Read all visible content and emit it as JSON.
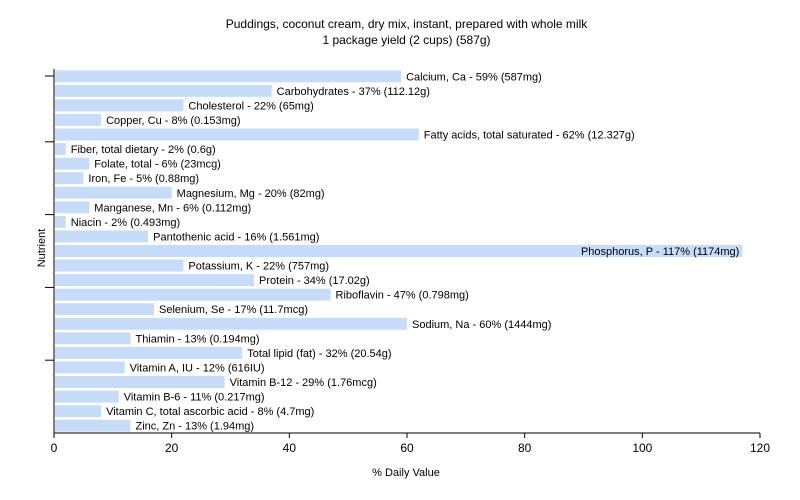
{
  "chart_data": {
    "type": "bar",
    "orientation": "horizontal",
    "title": "Puddings, coconut cream, dry mix, instant, prepared with whole milk",
    "subtitle": "1 package yield (2 cups) (587g)",
    "xlabel": "% Daily Value",
    "ylabel": "Nutrient",
    "xlim": [
      0,
      120
    ],
    "xticks": [
      0,
      20,
      40,
      60,
      80,
      100,
      120
    ],
    "grid": false,
    "bar_color": "#c6dcf8",
    "categories": [
      "Calcium, Ca",
      "Carbohydrates",
      "Cholesterol",
      "Copper, Cu",
      "Fatty acids, total saturated",
      "Fiber, total dietary",
      "Folate, total",
      "Iron, Fe",
      "Magnesium, Mg",
      "Manganese, Mn",
      "Niacin",
      "Pantothenic acid",
      "Phosphorus, P",
      "Potassium, K",
      "Protein",
      "Riboflavin",
      "Selenium, Se",
      "Sodium, Na",
      "Thiamin",
      "Total lipid (fat)",
      "Vitamin A, IU",
      "Vitamin B-12",
      "Vitamin B-6",
      "Vitamin C, total ascorbic acid",
      "Zinc, Zn"
    ],
    "values": [
      59,
      37,
      22,
      8,
      62,
      2,
      6,
      5,
      20,
      6,
      2,
      16,
      117,
      22,
      34,
      47,
      17,
      60,
      13,
      32,
      12,
      29,
      11,
      8,
      13
    ],
    "labels": [
      "Calcium, Ca - 59% (587mg)",
      "Carbohydrates - 37% (112.12g)",
      "Cholesterol - 22% (65mg)",
      "Copper, Cu - 8% (0.153mg)",
      "Fatty acids, total saturated - 62% (12.327g)",
      "Fiber, total dietary - 2% (0.6g)",
      "Folate, total - 6% (23mcg)",
      "Iron, Fe - 5% (0.88mg)",
      "Magnesium, Mg - 20% (82mg)",
      "Manganese, Mn - 6% (0.112mg)",
      "Niacin - 2% (0.493mg)",
      "Pantothenic acid - 16% (1.561mg)",
      "Phosphorus, P - 117% (1174mg)",
      "Potassium, K - 22% (757mg)",
      "Protein - 34% (17.02g)",
      "Riboflavin - 47% (0.798mg)",
      "Selenium, Se - 17% (11.7mcg)",
      "Sodium, Na - 60% (1444mg)",
      "Thiamin - 13% (0.194mg)",
      "Total lipid (fat) - 32% (20.54g)",
      "Vitamin A, IU - 12% (616IU)",
      "Vitamin B-12 - 29% (1.76mcg)",
      "Vitamin B-6 - 11% (0.217mg)",
      "Vitamin C, total ascorbic acid - 8% (4.7mg)",
      "Zinc, Zn - 13% (1.94mg)"
    ]
  }
}
